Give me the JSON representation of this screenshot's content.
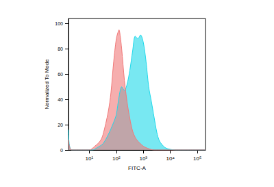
{
  "chart_data": {
    "type": "area",
    "x_label": "FITC-A",
    "y_label": "Normalized To Mode",
    "log": "x",
    "grid": false,
    "xlim": [
      1.7,
      200000
    ],
    "xticks": [
      {
        "value": 10,
        "label": "10¹"
      },
      {
        "value": 100,
        "label": "10²"
      },
      {
        "value": 1000,
        "label": "10³"
      },
      {
        "value": 10000,
        "label": "10⁴"
      },
      {
        "value": 100000,
        "label": "10⁵"
      }
    ],
    "ylim": [
      0,
      104
    ],
    "yticks": [
      0,
      20,
      40,
      60,
      80,
      100
    ],
    "series": [
      {
        "color": "#1ed8ea",
        "x": [
          1.7,
          2.2,
          13,
          20,
          32,
          50,
          80,
          100,
          126,
          158,
          200,
          250,
          316,
          400,
          500,
          630,
          790,
          1000,
          1260,
          1580,
          2000,
          2500,
          3160,
          4000,
          6300,
          10000,
          16000,
          200000
        ],
        "values": [
          16,
          0,
          0,
          2,
          5,
          12,
          22,
          28,
          42,
          50,
          47,
          52,
          63,
          78,
          90,
          88,
          91,
          85,
          70,
          50,
          38,
          26,
          14,
          7,
          2,
          0.5,
          0,
          0
        ]
      },
      {
        "color": "#f07878",
        "x": [
          1.7,
          2.2,
          10,
          16,
          25,
          32,
          50,
          63,
          80,
          100,
          115,
          126,
          140,
          158,
          200,
          250,
          316,
          400,
          500,
          630,
          1000,
          1600,
          2500,
          200000
        ],
        "values": [
          8,
          0,
          0,
          3,
          7,
          12,
          30,
          45,
          70,
          88,
          93,
          95,
          90,
          80,
          55,
          38,
          25,
          15,
          10,
          7,
          3,
          1,
          0,
          0
        ]
      }
    ]
  }
}
